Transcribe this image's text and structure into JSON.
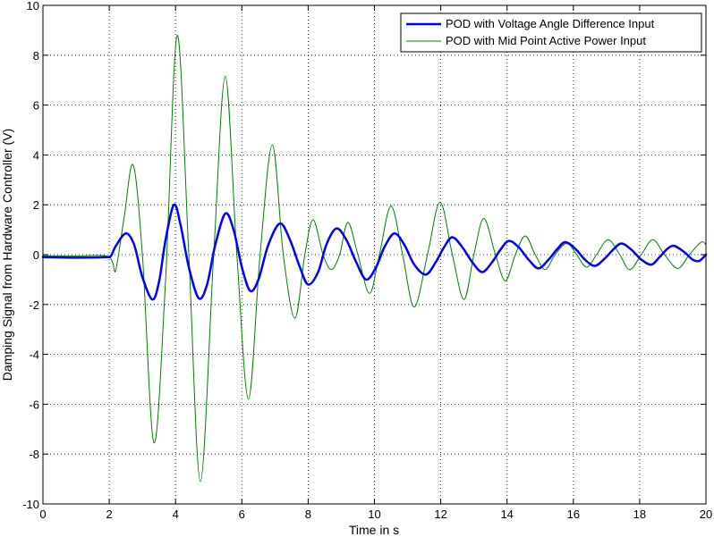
{
  "chart_data": {
    "type": "line",
    "title": "",
    "xlabel": "Time in s",
    "ylabel": "Damping Signal from Hardware Controller (V)",
    "xlim": [
      0,
      20
    ],
    "ylim": [
      -10,
      10
    ],
    "xticks": [
      0,
      2,
      4,
      6,
      8,
      10,
      12,
      14,
      16,
      18,
      20
    ],
    "yticks": [
      -10,
      -8,
      -6,
      -4,
      -2,
      0,
      2,
      4,
      6,
      8,
      10
    ],
    "grid": true,
    "legend_position": "top-right",
    "series": [
      {
        "name": "POD with Voltage Angle Difference Input",
        "color": "#0000ff",
        "line_width": "thick",
        "points": [
          [
            0.0,
            -0.1
          ],
          [
            1.0,
            -0.12
          ],
          [
            1.9,
            -0.1
          ],
          [
            2.05,
            -0.05
          ],
          [
            2.2,
            0.35
          ],
          [
            2.5,
            0.85
          ],
          [
            2.75,
            0.4
          ],
          [
            3.0,
            -0.9
          ],
          [
            3.3,
            -1.8
          ],
          [
            3.5,
            -1.1
          ],
          [
            3.7,
            0.6
          ],
          [
            3.95,
            2.0
          ],
          [
            4.15,
            1.2
          ],
          [
            4.4,
            -0.5
          ],
          [
            4.7,
            -1.75
          ],
          [
            4.95,
            -1.2
          ],
          [
            5.2,
            0.4
          ],
          [
            5.5,
            1.65
          ],
          [
            5.75,
            1.0
          ],
          [
            6.0,
            -0.5
          ],
          [
            6.25,
            -1.45
          ],
          [
            6.5,
            -1.0
          ],
          [
            6.8,
            0.4
          ],
          [
            7.15,
            1.25
          ],
          [
            7.45,
            0.6
          ],
          [
            7.75,
            -0.5
          ],
          [
            8.0,
            -1.2
          ],
          [
            8.3,
            -0.7
          ],
          [
            8.55,
            0.4
          ],
          [
            8.85,
            1.05
          ],
          [
            9.15,
            0.6
          ],
          [
            9.45,
            -0.3
          ],
          [
            9.75,
            -1.0
          ],
          [
            10.05,
            -0.5
          ],
          [
            10.3,
            0.3
          ],
          [
            10.6,
            0.85
          ],
          [
            10.9,
            0.4
          ],
          [
            11.2,
            -0.4
          ],
          [
            11.55,
            -0.8
          ],
          [
            11.85,
            -0.3
          ],
          [
            12.1,
            0.3
          ],
          [
            12.35,
            0.7
          ],
          [
            12.65,
            0.3
          ],
          [
            12.95,
            -0.3
          ],
          [
            13.25,
            -0.7
          ],
          [
            13.55,
            -0.3
          ],
          [
            13.8,
            0.2
          ],
          [
            14.05,
            0.55
          ],
          [
            14.35,
            0.3
          ],
          [
            14.65,
            -0.2
          ],
          [
            14.95,
            -0.55
          ],
          [
            15.25,
            -0.2
          ],
          [
            15.5,
            0.2
          ],
          [
            15.75,
            0.5
          ],
          [
            16.05,
            0.25
          ],
          [
            16.35,
            -0.2
          ],
          [
            16.65,
            -0.45
          ],
          [
            16.95,
            -0.15
          ],
          [
            17.2,
            0.2
          ],
          [
            17.45,
            0.45
          ],
          [
            17.75,
            0.2
          ],
          [
            18.05,
            -0.2
          ],
          [
            18.35,
            -0.4
          ],
          [
            18.6,
            -0.1
          ],
          [
            18.85,
            0.25
          ],
          [
            19.05,
            0.35
          ],
          [
            19.35,
            0.1
          ],
          [
            19.6,
            -0.2
          ],
          [
            19.8,
            -0.25
          ],
          [
            20.0,
            0.0
          ]
        ]
      },
      {
        "name": "POD with Mid Point Active Power Input",
        "color": "#008000",
        "line_width": "thin",
        "points": [
          [
            0.0,
            -0.05
          ],
          [
            1.0,
            -0.05
          ],
          [
            1.9,
            -0.05
          ],
          [
            2.1,
            -0.3
          ],
          [
            2.2,
            -0.6
          ],
          [
            2.45,
            1.5
          ],
          [
            2.72,
            3.6
          ],
          [
            3.0,
            0.0
          ],
          [
            3.35,
            -7.55
          ],
          [
            3.7,
            -1.0
          ],
          [
            4.05,
            8.8
          ],
          [
            4.4,
            0.0
          ],
          [
            4.75,
            -9.1
          ],
          [
            5.15,
            0.0
          ],
          [
            5.5,
            7.15
          ],
          [
            5.85,
            0.0
          ],
          [
            6.2,
            -5.8
          ],
          [
            6.55,
            0.0
          ],
          [
            6.92,
            4.4
          ],
          [
            7.25,
            0.0
          ],
          [
            7.6,
            -2.55
          ],
          [
            7.9,
            0.0
          ],
          [
            8.15,
            1.4
          ],
          [
            8.45,
            0.0
          ],
          [
            8.7,
            -0.6
          ],
          [
            8.95,
            0.0
          ],
          [
            9.2,
            1.3
          ],
          [
            9.5,
            0.0
          ],
          [
            9.85,
            -1.55
          ],
          [
            10.15,
            0.0
          ],
          [
            10.5,
            1.95
          ],
          [
            10.85,
            0.0
          ],
          [
            11.2,
            -2.1
          ],
          [
            11.6,
            0.0
          ],
          [
            11.98,
            2.1
          ],
          [
            12.35,
            0.0
          ],
          [
            12.7,
            -1.8
          ],
          [
            13.0,
            0.0
          ],
          [
            13.3,
            1.45
          ],
          [
            13.65,
            0.0
          ],
          [
            13.95,
            -1.05
          ],
          [
            14.25,
            0.0
          ],
          [
            14.55,
            0.75
          ],
          [
            14.85,
            0.0
          ],
          [
            15.15,
            -0.6
          ],
          [
            15.45,
            0.0
          ],
          [
            15.8,
            0.45
          ],
          [
            16.1,
            0.0
          ],
          [
            16.4,
            -0.5
          ],
          [
            16.7,
            0.0
          ],
          [
            17.05,
            0.6
          ],
          [
            17.4,
            0.0
          ],
          [
            17.7,
            -0.6
          ],
          [
            18.05,
            0.0
          ],
          [
            18.4,
            0.6
          ],
          [
            18.75,
            0.0
          ],
          [
            19.15,
            -0.55
          ],
          [
            19.5,
            0.0
          ],
          [
            19.85,
            0.5
          ],
          [
            20.0,
            0.4
          ]
        ]
      }
    ]
  }
}
